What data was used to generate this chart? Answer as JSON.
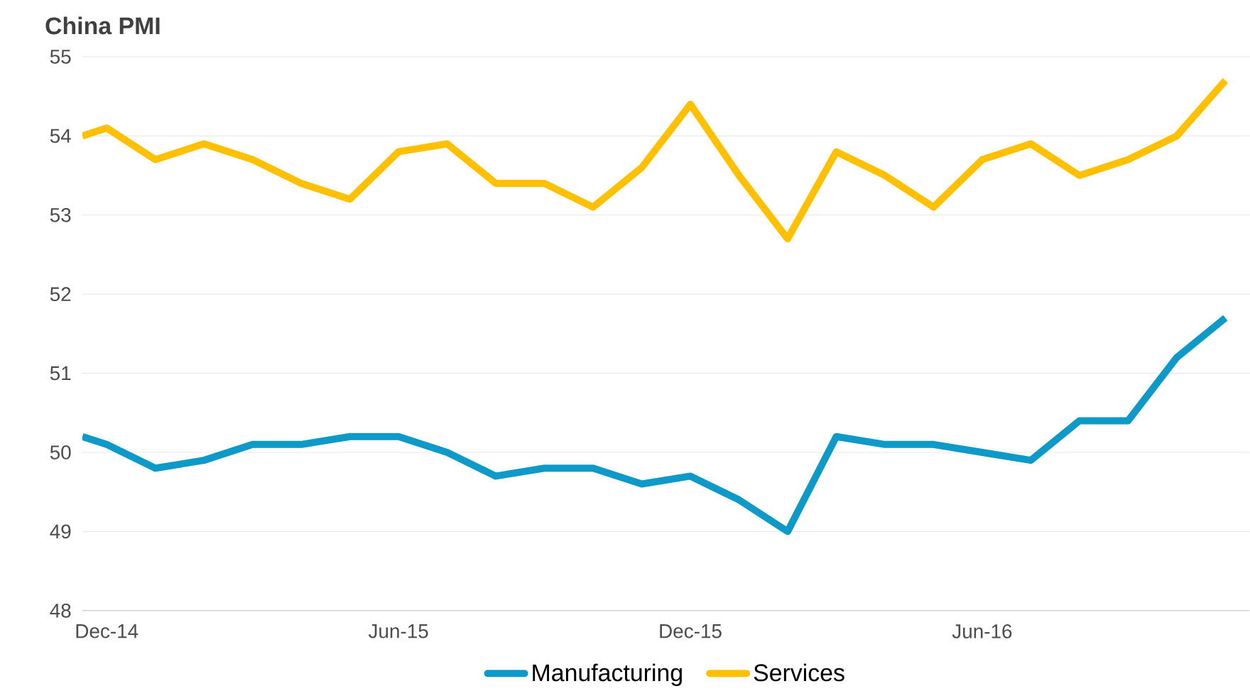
{
  "chart_data": {
    "type": "line",
    "title": "China PMI",
    "x": [
      "2014-11-16",
      "2014-12",
      "2015-01",
      "2015-02",
      "2015-03",
      "2015-04",
      "2015-05",
      "2015-06",
      "2015-07",
      "2015-08",
      "2015-09",
      "2015-10",
      "2015-11",
      "2015-12",
      "2016-01",
      "2016-02",
      "2016-03",
      "2016-04",
      "2016-05",
      "2016-06",
      "2016-07",
      "2016-08",
      "2016-09",
      "2016-10",
      "2016-11"
    ],
    "series": [
      {
        "name": "Manufacturing",
        "color": "#0e9ac8",
        "values": [
          50.2,
          50.1,
          49.8,
          49.9,
          50.1,
          50.1,
          50.2,
          50.2,
          50.0,
          49.7,
          49.8,
          49.8,
          49.6,
          49.7,
          49.4,
          49.0,
          50.2,
          50.1,
          50.1,
          50.0,
          49.9,
          50.4,
          50.4,
          51.2,
          51.7
        ]
      },
      {
        "name": "Services",
        "color": "#ffc000",
        "values": [
          54.0,
          54.1,
          53.7,
          53.9,
          53.7,
          53.4,
          53.2,
          53.8,
          53.9,
          53.4,
          53.4,
          53.1,
          53.6,
          54.4,
          53.5,
          52.7,
          53.8,
          53.5,
          53.1,
          53.7,
          53.9,
          53.5,
          53.7,
          54.0,
          54.7
        ]
      }
    ],
    "xlim": [
      "2014-11-16",
      "2016-11-16"
    ],
    "xticks": [
      {
        "value": "2014-12",
        "label": "Dec-14"
      },
      {
        "value": "2015-06",
        "label": "Jun-15"
      },
      {
        "value": "2015-12",
        "label": "Dec-15"
      },
      {
        "value": "2016-06",
        "label": "Jun-16"
      }
    ],
    "ylim": [
      48,
      55
    ],
    "yticks": [
      48,
      49,
      50,
      51,
      52,
      53,
      54,
      55
    ],
    "grid": "y",
    "legend": "bottom",
    "marker": "none",
    "line_style": "solid"
  }
}
